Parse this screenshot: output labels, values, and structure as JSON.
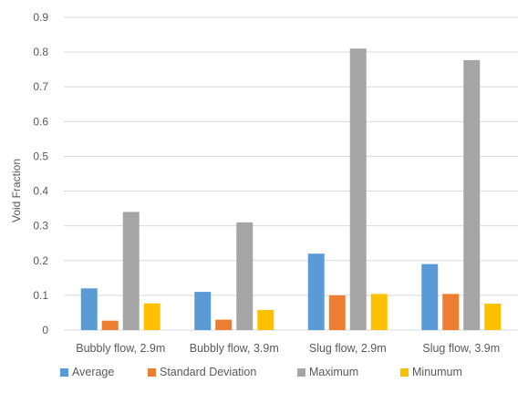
{
  "chart_data": {
    "type": "bar",
    "ylabel": "Void Fraction",
    "xlabel": "",
    "title": "",
    "ylim": [
      0,
      0.9
    ],
    "yticks": [
      "0",
      "0.1",
      "0.2",
      "0.3",
      "0.4",
      "0.5",
      "0.6",
      "0.7",
      "0.8",
      "0.9"
    ],
    "categories": [
      "Bubbly flow, 2.9m",
      "Bubbly flow, 3.9m",
      "Slug flow, 2.9m",
      "Slug flow, 3.9m"
    ],
    "series": [
      {
        "name": "Average",
        "color": "#5b9bd5",
        "values": [
          0.12,
          0.11,
          0.22,
          0.19
        ]
      },
      {
        "name": "Standard Deviation",
        "color": "#ed7d31",
        "values": [
          0.027,
          0.03,
          0.1,
          0.104
        ]
      },
      {
        "name": "Maximum",
        "color": "#a5a5a5",
        "values": [
          0.34,
          0.31,
          0.81,
          0.777
        ]
      },
      {
        "name": "Minumum",
        "color": "#ffc000",
        "values": [
          0.077,
          0.058,
          0.104,
          0.076
        ]
      }
    ],
    "grid": true,
    "legend_position": "bottom"
  }
}
